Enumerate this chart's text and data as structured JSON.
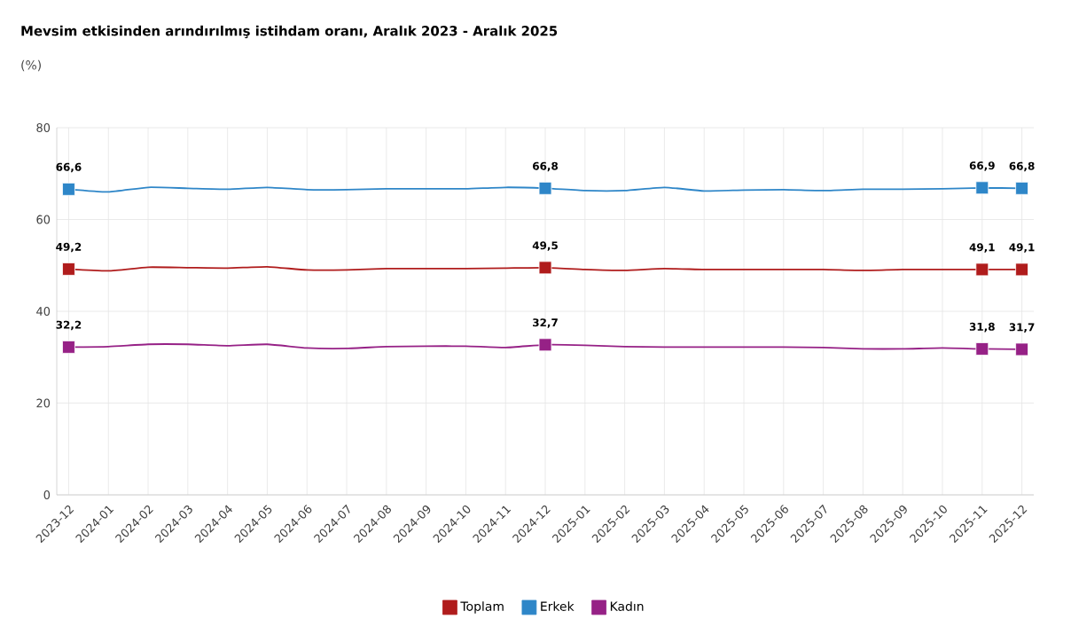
{
  "chart_data": {
    "type": "line",
    "title": "Mevsim etkisinden arındırılmış istihdam oranı, Aralık 2023 - Aralık 2025",
    "ylabel": "(%)",
    "categories": [
      "2023-12",
      "2024-01",
      "2024-02",
      "2024-03",
      "2024-04",
      "2024-05",
      "2024-06",
      "2024-07",
      "2024-08",
      "2024-09",
      "2024-10",
      "2024-11",
      "2024-12",
      "2025-01",
      "2025-02",
      "2025-03",
      "2025-04",
      "2025-05",
      "2025-06",
      "2025-07",
      "2025-08",
      "2025-09",
      "2025-10",
      "2025-11",
      "2025-12"
    ],
    "series": [
      {
        "name": "Toplam",
        "color": "#b01c1c",
        "values": [
          49.2,
          48.8,
          49.6,
          49.5,
          49.4,
          49.7,
          49.0,
          49.0,
          49.3,
          49.3,
          49.3,
          49.4,
          49.5,
          49.1,
          48.9,
          49.3,
          49.1,
          49.1,
          49.1,
          49.1,
          48.9,
          49.1,
          49.1,
          49.1,
          49.1
        ],
        "value_labels": [
          "49,2",
          null,
          null,
          null,
          null,
          null,
          null,
          null,
          null,
          null,
          null,
          null,
          "49,5",
          null,
          null,
          null,
          null,
          null,
          null,
          null,
          null,
          null,
          null,
          "49,1",
          "49,1"
        ]
      },
      {
        "name": "Erkek",
        "color": "#2e86c8",
        "values": [
          66.6,
          66.0,
          67.0,
          66.8,
          66.6,
          67.0,
          66.5,
          66.5,
          66.7,
          66.7,
          66.7,
          67.0,
          66.8,
          66.3,
          66.3,
          67.0,
          66.2,
          66.4,
          66.5,
          66.3,
          66.6,
          66.6,
          66.7,
          66.9,
          66.8
        ],
        "value_labels": [
          "66,6",
          null,
          null,
          null,
          null,
          null,
          null,
          null,
          null,
          null,
          null,
          null,
          "66,8",
          null,
          null,
          null,
          null,
          null,
          null,
          null,
          null,
          null,
          null,
          "66,9",
          "66,8"
        ]
      },
      {
        "name": "Kadın",
        "color": "#962186",
        "values": [
          32.2,
          32.3,
          32.8,
          32.8,
          32.5,
          32.8,
          32.0,
          31.9,
          32.3,
          32.4,
          32.4,
          32.1,
          32.7,
          32.6,
          32.3,
          32.2,
          32.2,
          32.2,
          32.2,
          32.1,
          31.8,
          31.8,
          32.0,
          31.8,
          31.7
        ],
        "value_labels": [
          "32,2",
          null,
          null,
          null,
          null,
          null,
          null,
          null,
          null,
          null,
          null,
          null,
          "32,7",
          null,
          null,
          null,
          null,
          null,
          null,
          null,
          null,
          null,
          null,
          "31,8",
          "31,7"
        ]
      }
    ],
    "ylim": [
      0,
      80
    ],
    "yticks": [
      0,
      20,
      40,
      60,
      80
    ],
    "grid": true,
    "legend": "bottom",
    "line_style": "solid"
  }
}
